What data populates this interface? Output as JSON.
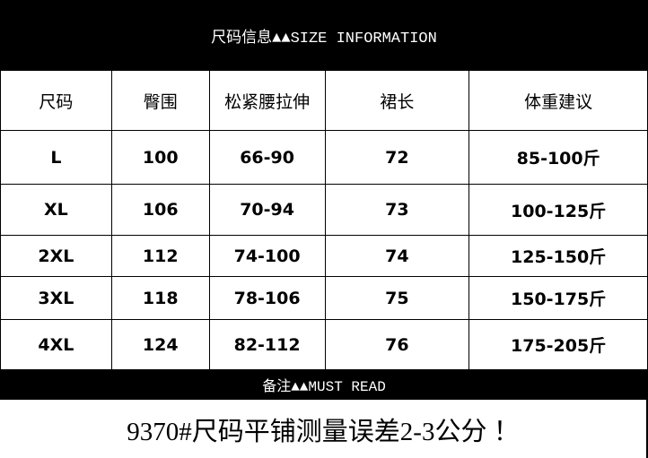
{
  "title": "尺码信息▲▲SIZE INFORMATION",
  "table": {
    "headers": [
      "尺码",
      "臀围",
      "松紧腰拉伸",
      "裙长",
      "体重建议"
    ],
    "rows": [
      [
        "L",
        "100",
        "66-90",
        "72",
        "85-100斤"
      ],
      [
        "XL",
        "106",
        "70-94",
        "73",
        "100-125斤"
      ],
      [
        "2XL",
        "112",
        "74-100",
        "74",
        "125-150斤"
      ],
      [
        "3XL",
        "118",
        "78-106",
        "75",
        "150-175斤"
      ],
      [
        "4XL",
        "124",
        "82-112",
        "76",
        "175-205斤"
      ]
    ]
  },
  "notes_title": "备注▲▲MUST READ",
  "note": "9370#尺码平铺测量误差2-3公分 ！"
}
